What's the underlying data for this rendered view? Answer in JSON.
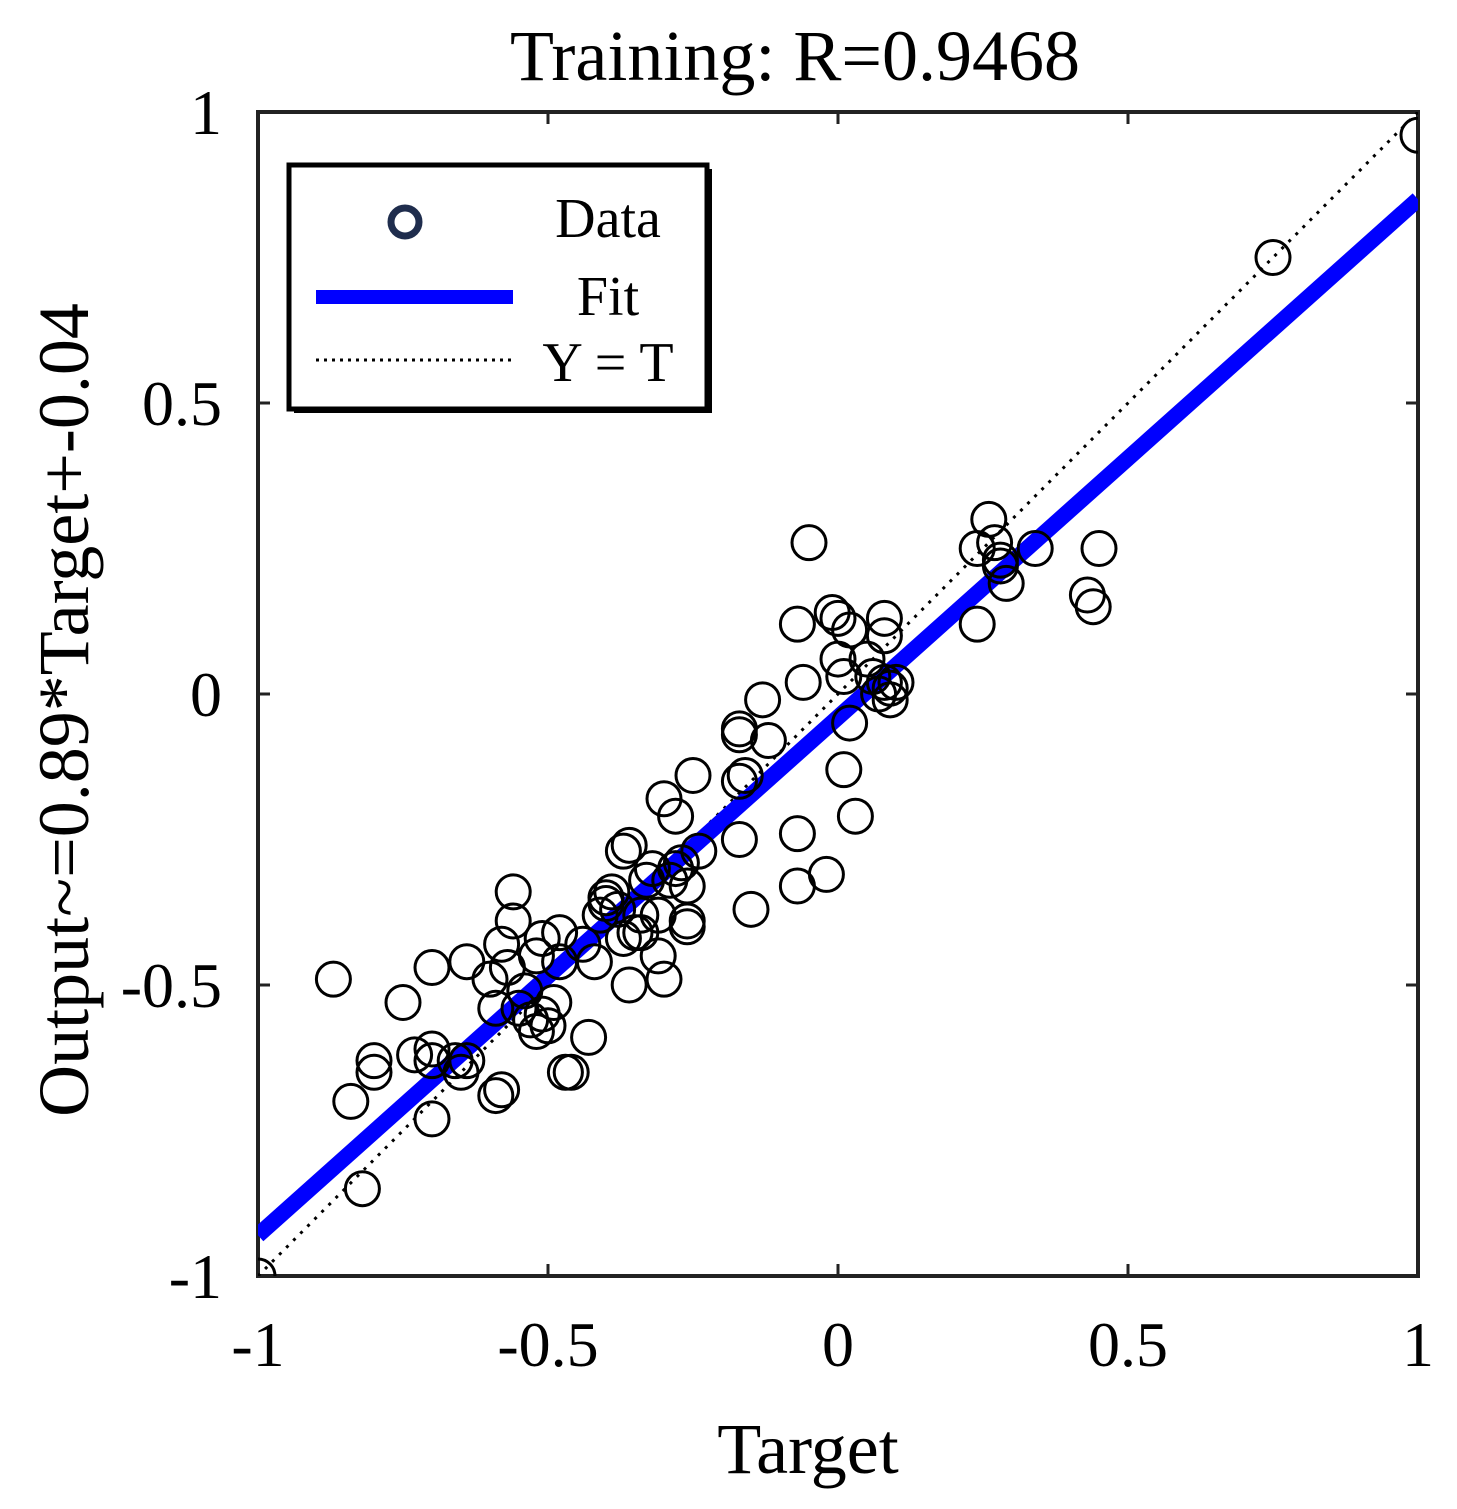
{
  "chart_data": {
    "type": "scatter",
    "title": "Training: R=0.9468",
    "xlabel": "Target",
    "ylabel": "Output~=0.89*Target+-0.04",
    "xlim": [
      -1,
      1
    ],
    "ylim": [
      -1,
      1
    ],
    "xticks": [
      -1,
      -0.5,
      0,
      0.5,
      1
    ],
    "xtick_labels": [
      "-1",
      "-0.5",
      "0",
      "0.5",
      "1"
    ],
    "yticks": [
      -1,
      -0.5,
      0,
      0.5,
      1
    ],
    "ytick_labels": [
      "-1",
      "-0.5",
      "0",
      "0.5",
      "1"
    ],
    "grid": false,
    "legend_position": "top-left",
    "legend": {
      "data_label": "Data",
      "fit_label": "Fit",
      "identity_label": "Y = T"
    },
    "fit": {
      "slope": 0.89,
      "intercept": -0.04,
      "color": "#0000ff"
    },
    "colors": {
      "data_marker": "#000000",
      "legend_marker": "#1f2d4d",
      "identity": "#000000"
    },
    "series": [
      {
        "name": "Data",
        "points": [
          [
            -1.0,
            -1.0
          ],
          [
            1.0,
            0.96
          ],
          [
            0.75,
            0.75
          ],
          [
            -0.87,
            -0.49
          ],
          [
            -0.84,
            -0.7
          ],
          [
            -0.8,
            -0.63
          ],
          [
            -0.8,
            -0.65
          ],
          [
            -0.82,
            -0.85
          ],
          [
            -0.75,
            -0.53
          ],
          [
            -0.73,
            -0.62
          ],
          [
            -0.7,
            -0.47
          ],
          [
            -0.7,
            -0.61
          ],
          [
            -0.7,
            -0.63
          ],
          [
            -0.7,
            -0.73
          ],
          [
            -0.66,
            -0.63
          ],
          [
            -0.65,
            -0.65
          ],
          [
            -0.64,
            -0.63
          ],
          [
            -0.64,
            -0.46
          ],
          [
            -0.6,
            -0.49
          ],
          [
            -0.59,
            -0.54
          ],
          [
            -0.59,
            -0.69
          ],
          [
            -0.58,
            -0.68
          ],
          [
            -0.58,
            -0.43
          ],
          [
            -0.57,
            -0.47
          ],
          [
            -0.56,
            -0.34
          ],
          [
            -0.56,
            -0.39
          ],
          [
            -0.55,
            -0.54
          ],
          [
            -0.54,
            -0.51
          ],
          [
            -0.53,
            -0.56
          ],
          [
            -0.52,
            -0.58
          ],
          [
            -0.52,
            -0.45
          ],
          [
            -0.51,
            -0.42
          ],
          [
            -0.51,
            -0.55
          ],
          [
            -0.5,
            -0.57
          ],
          [
            -0.49,
            -0.53
          ],
          [
            -0.48,
            -0.46
          ],
          [
            -0.48,
            -0.41
          ],
          [
            -0.47,
            -0.65
          ],
          [
            -0.46,
            -0.65
          ],
          [
            -0.44,
            -0.43
          ],
          [
            -0.43,
            -0.59
          ],
          [
            -0.42,
            -0.46
          ],
          [
            -0.41,
            -0.38
          ],
          [
            -0.4,
            -0.36
          ],
          [
            -0.4,
            -0.35
          ],
          [
            -0.39,
            -0.34
          ],
          [
            -0.38,
            -0.37
          ],
          [
            -0.37,
            -0.42
          ],
          [
            -0.37,
            -0.27
          ],
          [
            -0.36,
            -0.26
          ],
          [
            -0.36,
            -0.5
          ],
          [
            -0.35,
            -0.41
          ],
          [
            -0.34,
            -0.38
          ],
          [
            -0.34,
            -0.41
          ],
          [
            -0.33,
            -0.32
          ],
          [
            -0.32,
            -0.3
          ],
          [
            -0.31,
            -0.38
          ],
          [
            -0.31,
            -0.45
          ],
          [
            -0.3,
            -0.49
          ],
          [
            -0.3,
            -0.18
          ],
          [
            -0.29,
            -0.32
          ],
          [
            -0.28,
            -0.3
          ],
          [
            -0.28,
            -0.21
          ],
          [
            -0.27,
            -0.29
          ],
          [
            -0.26,
            -0.39
          ],
          [
            -0.26,
            -0.33
          ],
          [
            -0.26,
            -0.4
          ],
          [
            -0.25,
            -0.14
          ],
          [
            -0.24,
            -0.27
          ],
          [
            -0.17,
            -0.07
          ],
          [
            -0.17,
            -0.06
          ],
          [
            -0.17,
            -0.15
          ],
          [
            -0.17,
            -0.25
          ],
          [
            -0.16,
            -0.14
          ],
          [
            -0.15,
            -0.37
          ],
          [
            -0.13,
            -0.01
          ],
          [
            -0.12,
            -0.08
          ],
          [
            -0.07,
            -0.24
          ],
          [
            -0.07,
            -0.33
          ],
          [
            -0.07,
            0.12
          ],
          [
            -0.06,
            0.02
          ],
          [
            -0.05,
            0.26
          ],
          [
            -0.02,
            -0.31
          ],
          [
            -0.01,
            0.14
          ],
          [
            0.0,
            0.13
          ],
          [
            0.0,
            0.06
          ],
          [
            0.01,
            -0.13
          ],
          [
            0.01,
            0.03
          ],
          [
            0.02,
            0.11
          ],
          [
            0.02,
            -0.05
          ],
          [
            0.03,
            -0.21
          ],
          [
            0.05,
            0.06
          ],
          [
            0.06,
            0.03
          ],
          [
            0.07,
            0.0
          ],
          [
            0.08,
            0.13
          ],
          [
            0.08,
            0.1
          ],
          [
            0.08,
            0.02
          ],
          [
            0.09,
            -0.01
          ],
          [
            0.09,
            0.01
          ],
          [
            0.1,
            0.02
          ],
          [
            0.24,
            0.25
          ],
          [
            0.24,
            0.12
          ],
          [
            0.26,
            0.3
          ],
          [
            0.27,
            0.26
          ],
          [
            0.28,
            0.22
          ],
          [
            0.28,
            0.23
          ],
          [
            0.29,
            0.19
          ],
          [
            0.34,
            0.25
          ],
          [
            0.43,
            0.17
          ],
          [
            0.44,
            0.15
          ],
          [
            0.45,
            0.25
          ]
        ]
      }
    ]
  }
}
